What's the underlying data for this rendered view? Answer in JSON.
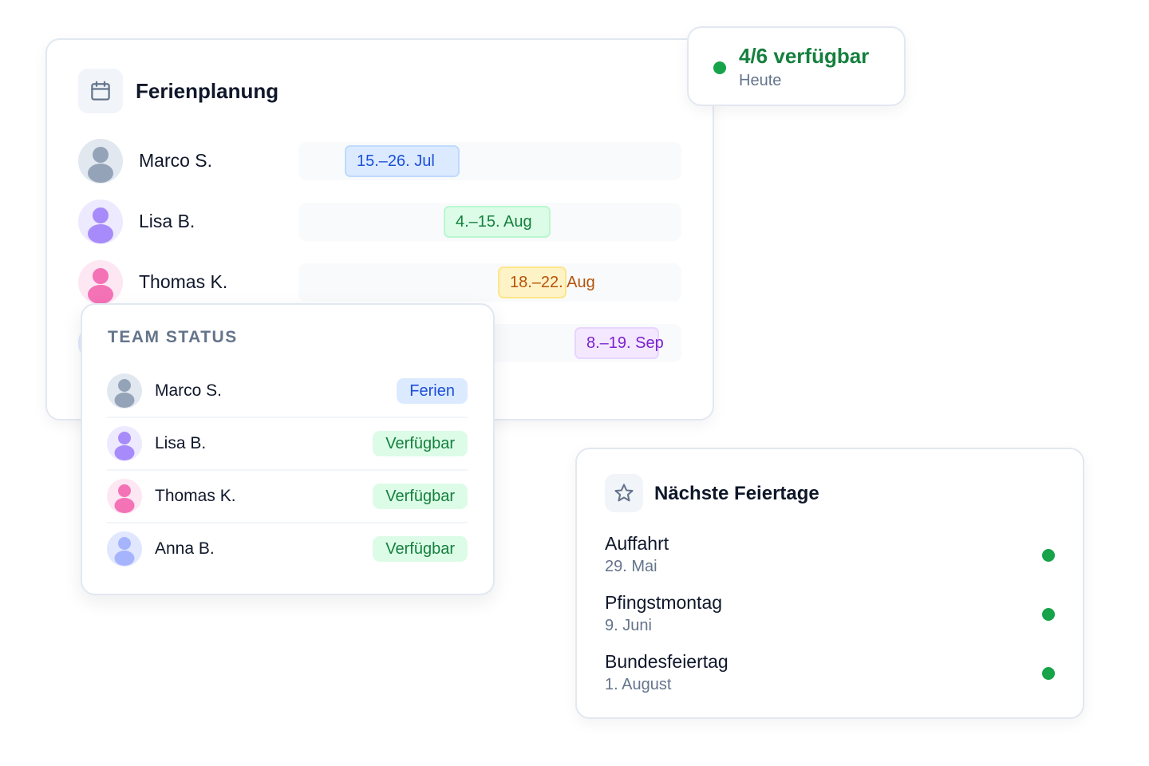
{
  "planner": {
    "title": "Ferienplanung",
    "icon": "calendar-icon",
    "rows": [
      {
        "name": "Marco S.",
        "range": "15.–26. Jul",
        "color": "#1d4ed8",
        "bg": "#dbeafe",
        "border": "#bfdbfe",
        "avatar_bg": "#e2e8f0",
        "avatar_fg": "#94a3b8"
      },
      {
        "name": "Lisa B.",
        "range": "4.–15. Aug",
        "color": "#15803d",
        "bg": "#dcfce7",
        "border": "#bbf7d0",
        "avatar_bg": "#ede9fe",
        "avatar_fg": "#a78bfa"
      },
      {
        "name": "Thomas K.",
        "range": "18.–22. Aug",
        "color": "#b45309",
        "bg": "#fef3c7",
        "border": "#fde68a",
        "avatar_bg": "#fce7f3",
        "avatar_fg": "#f472b6"
      },
      {
        "range": "8.–19. Sep",
        "color": "#7e22ce",
        "bg": "#f3e8ff",
        "border": "#e9d5ff",
        "avatar_bg": "#e0e7ff",
        "avatar_fg": "#a5b4fc"
      }
    ]
  },
  "availability": {
    "value": "4/6 verfügbar",
    "label": "Heute",
    "color": "#15803d",
    "dot": "#16a34a"
  },
  "team_status": {
    "title": "TEAM STATUS",
    "members": [
      {
        "name": "Marco S.",
        "status": "Ferien",
        "status_color": "#1d4ed8",
        "status_bg": "#dbeafe"
      },
      {
        "name": "Lisa B.",
        "status": "Verfügbar",
        "status_color": "#15803d",
        "status_bg": "#dcfce7"
      },
      {
        "name": "Thomas K.",
        "status": "Verfügbar",
        "status_color": "#15803d",
        "status_bg": "#dcfce7"
      },
      {
        "name": "Anna B.",
        "status": "Verfügbar",
        "status_color": "#15803d",
        "status_bg": "#dcfce7"
      }
    ]
  },
  "holidays": {
    "title": "Nächste Feiertage",
    "icon": "star-icon",
    "items": [
      {
        "name": "Auffahrt",
        "date": "29. Mai"
      },
      {
        "name": "Pfingstmontag",
        "date": "9. Juni"
      },
      {
        "name": "Bundesfeiertag",
        "date": "1. August"
      }
    ]
  }
}
